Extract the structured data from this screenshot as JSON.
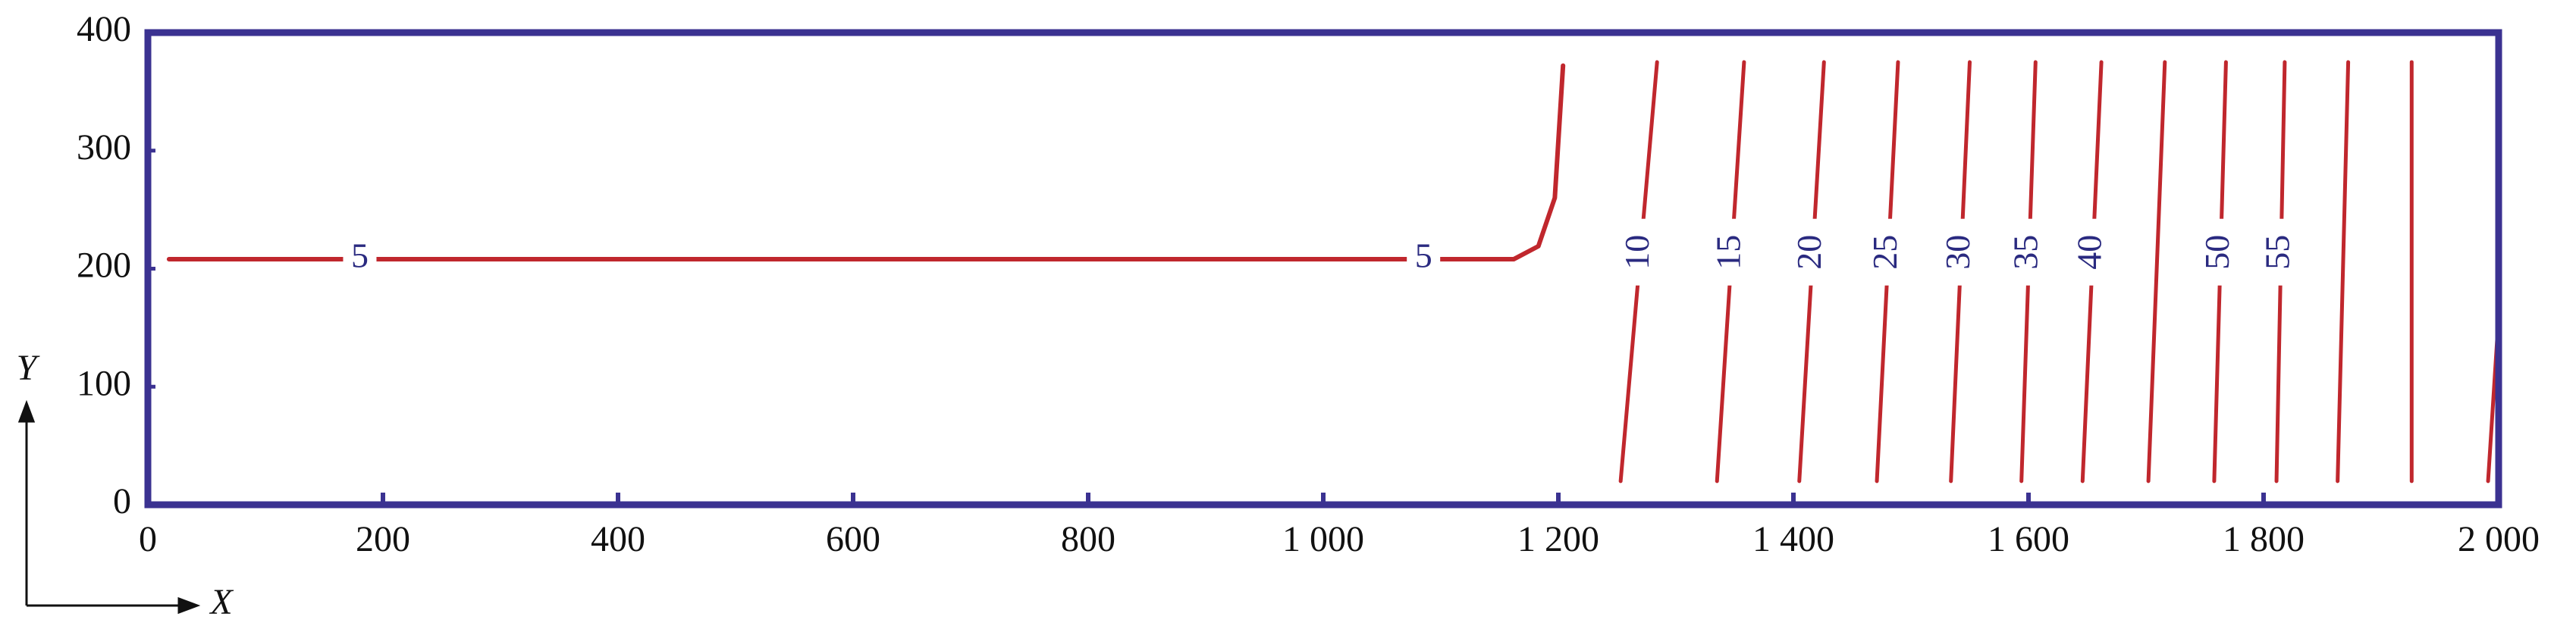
{
  "chart_data": {
    "type": "contour",
    "x_label": "X",
    "y_label": "Y",
    "xlim": [
      0,
      2000
    ],
    "ylim": [
      0,
      400
    ],
    "xticks": [
      0,
      200,
      400,
      600,
      800,
      {
        "value": 1000,
        "label": "1 000"
      },
      {
        "value": 1200,
        "label": "1 200"
      },
      {
        "value": 1400,
        "label": "1 400"
      },
      {
        "value": 1600,
        "label": "1 600"
      },
      {
        "value": 1800,
        "label": "1 800"
      },
      {
        "value": 2000,
        "label": "2 000"
      }
    ],
    "yticks": [
      0,
      100,
      200,
      300,
      400
    ],
    "color": "#c0272d",
    "frame_color": "#3b3291",
    "series": [
      {
        "level": 5,
        "x": [
          18,
          1100,
          1162,
          1183,
          1197,
          1204
        ],
        "y": [
          208,
          208,
          208,
          219,
          260,
          372
        ]
      },
      {
        "level": 10,
        "x": [
          1253,
          1284
        ],
        "y": [
          20,
          375
        ]
      },
      {
        "level": 15,
        "x": [
          1335,
          1358
        ],
        "y": [
          20,
          375
        ]
      },
      {
        "level": 20,
        "x": [
          1405,
          1426
        ],
        "y": [
          20,
          375
        ]
      },
      {
        "level": 25,
        "x": [
          1471,
          1489
        ],
        "y": [
          20,
          375
        ]
      },
      {
        "level": 30,
        "x": [
          1534,
          1550
        ],
        "y": [
          20,
          375
        ]
      },
      {
        "level": 35,
        "x": [
          1594,
          1606
        ],
        "y": [
          20,
          375
        ]
      },
      {
        "level": 40,
        "x": [
          1646,
          1662
        ],
        "y": [
          20,
          375
        ]
      },
      {
        "x": [
          1702,
          1716
        ],
        "y": [
          20,
          375
        ]
      },
      {
        "level": 50,
        "x": [
          1758,
          1768
        ],
        "y": [
          20,
          375
        ]
      },
      {
        "level": 55,
        "x": [
          1811,
          1818
        ],
        "y": [
          20,
          375
        ]
      },
      {
        "x": [
          1863,
          1872
        ],
        "y": [
          20,
          375
        ]
      },
      {
        "x": [
          1926,
          1926
        ],
        "y": [
          20,
          375
        ]
      },
      {
        "x": [
          1991,
          2000
        ],
        "y": [
          20,
          160
        ]
      }
    ]
  }
}
